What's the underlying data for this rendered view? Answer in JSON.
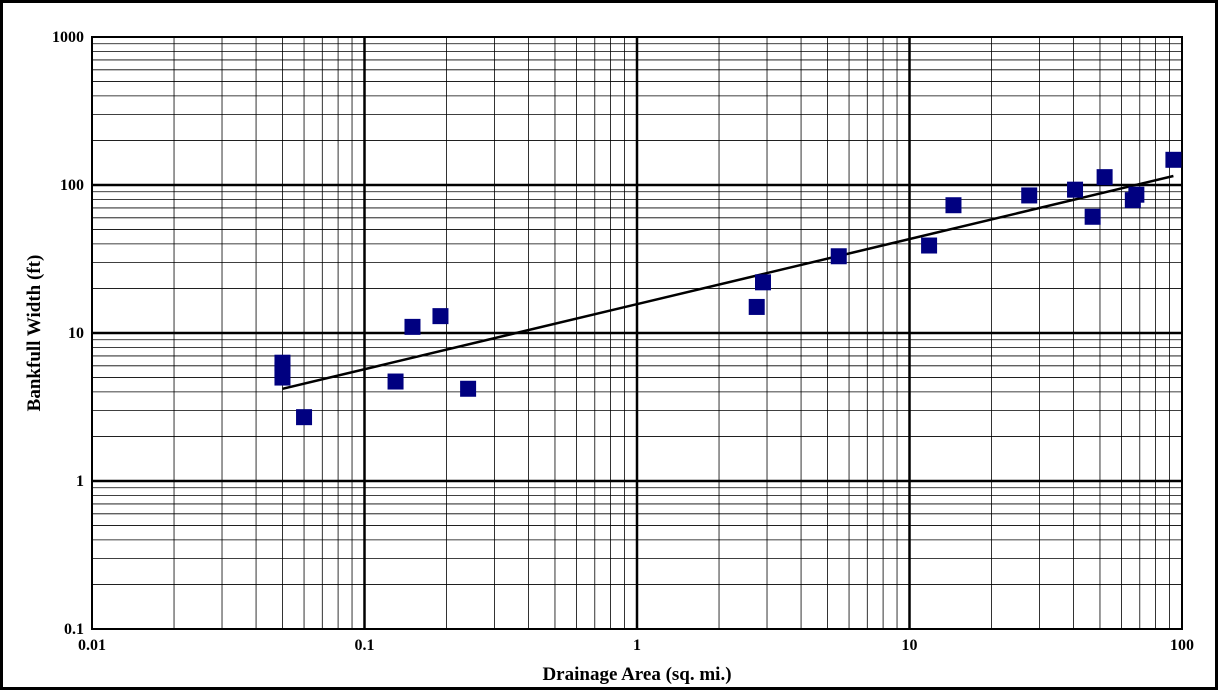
{
  "chart_data": {
    "type": "scatter",
    "xlabel": "Drainage Area (sq. mi.)",
    "ylabel": "Bankfull Width (ft)",
    "x_scale": "log",
    "y_scale": "log",
    "xlim": [
      0.01,
      100
    ],
    "ylim": [
      0.1,
      1000
    ],
    "x_ticks": [
      "0.01",
      "0.1",
      "1",
      "10",
      "100"
    ],
    "y_ticks": [
      "0.1",
      "1",
      "10",
      "100",
      "1000"
    ],
    "grid": true,
    "marker_color": "#000080",
    "series": [
      {
        "type": "scatter",
        "points": [
          [
            0.05,
            6.3
          ],
          [
            0.05,
            5.6
          ],
          [
            0.05,
            5.0
          ],
          [
            0.06,
            2.7
          ],
          [
            0.13,
            4.7
          ],
          [
            0.15,
            11
          ],
          [
            0.19,
            13
          ],
          [
            0.24,
            4.2
          ],
          [
            2.75,
            15
          ],
          [
            2.9,
            22
          ],
          [
            5.5,
            33
          ],
          [
            11.8,
            39
          ],
          [
            14.5,
            73
          ],
          [
            27.5,
            85
          ],
          [
            40.5,
            93
          ],
          [
            47,
            61
          ],
          [
            52,
            113
          ],
          [
            66,
            79
          ],
          [
            68,
            86
          ],
          [
            93,
            148
          ]
        ]
      },
      {
        "type": "line",
        "points": [
          [
            0.05,
            4.2
          ],
          [
            93,
            115
          ]
        ]
      }
    ]
  }
}
